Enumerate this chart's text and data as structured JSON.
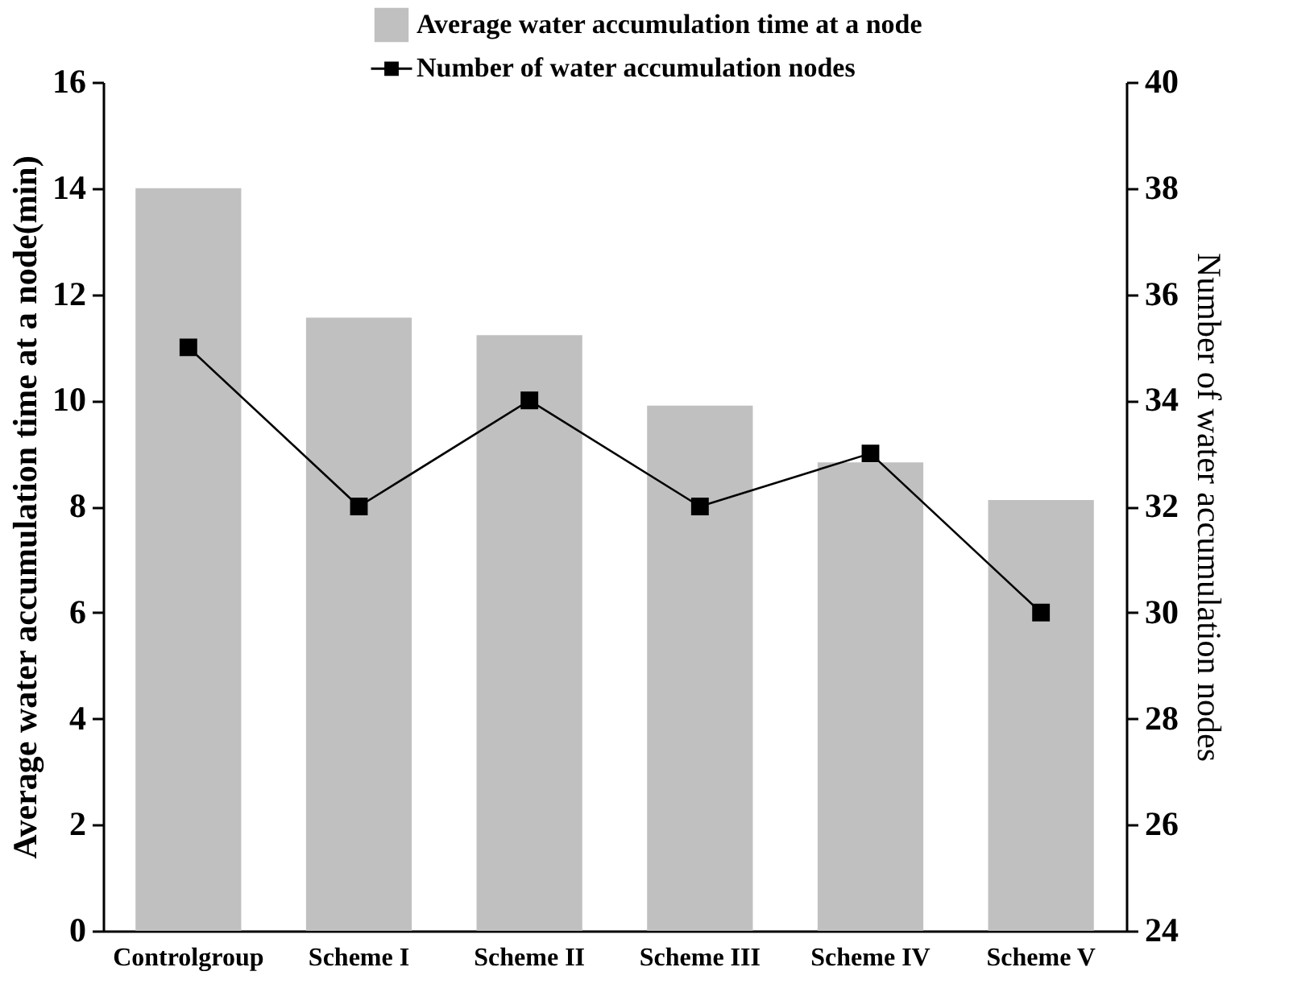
{
  "chart_data": {
    "type": "bar",
    "categories": [
      "Controlgroup",
      "Scheme I",
      "Scheme II",
      "Scheme III",
      "Scheme IV",
      "Scheme V"
    ],
    "series": [
      {
        "name": "Average water accumulation time at a node",
        "color": "#c0c0c0",
        "values": [
          14.0,
          11.56,
          11.23,
          9.9,
          8.83,
          8.12
        ]
      },
      {
        "name": "Number of water accumulation nodes",
        "type": "line",
        "axis": "y2",
        "color": "#000000",
        "values": [
          35,
          32,
          34,
          32,
          33,
          30
        ]
      }
    ],
    "ylabel": "Average water accumulation time at a node(min)",
    "y2label": "Number of water accumulation nodes",
    "ylim": [
      0,
      16
    ],
    "yticks": [
      0,
      2,
      4,
      6,
      8,
      10,
      12,
      14,
      16
    ],
    "y2lim": [
      24,
      40
    ],
    "y2ticks": [
      24,
      26,
      28,
      30,
      32,
      34,
      36,
      38,
      40
    ],
    "marker": "square",
    "legend": "top"
  }
}
